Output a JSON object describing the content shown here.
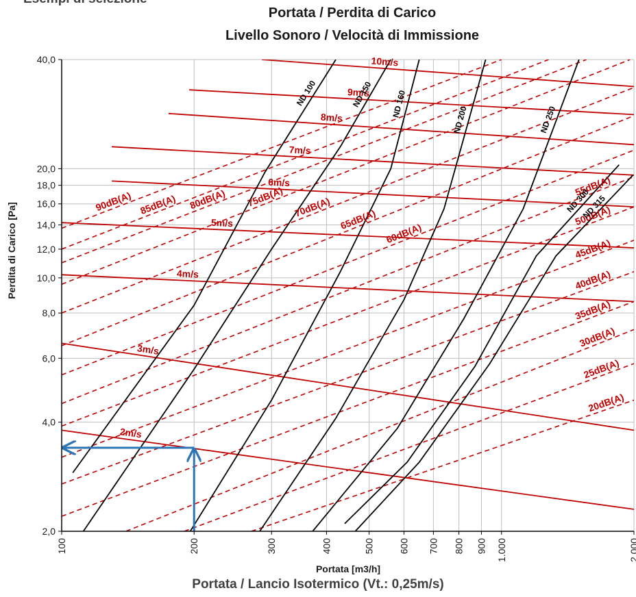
{
  "header_fragment": "Esempi di selezione",
  "bottom_caption": "Portata / Lancio Isotermico (Vt.: 0,25m/s)",
  "chart_data": {
    "type": "line",
    "title": [
      "Portata / Perdita di Carico",
      "Livello Sonoro / Velocità di Immissione"
    ],
    "xlabel": "Portata [m3/h]",
    "ylabel": "Perdita di Carico [Pa]",
    "xscale": "log",
    "yscale": "log",
    "xlim": [
      100,
      2000
    ],
    "ylim": [
      2,
      40
    ],
    "x_ticks": [
      {
        "value": 100,
        "label": "100"
      },
      {
        "value": 200,
        "label": "200"
      },
      {
        "value": 300,
        "label": "300"
      },
      {
        "value": 400,
        "label": "400"
      },
      {
        "value": 500,
        "label": "500"
      },
      {
        "value": 600,
        "label": "600"
      },
      {
        "value": 700,
        "label": "700"
      },
      {
        "value": 800,
        "label": "800"
      },
      {
        "value": 900,
        "label": "900"
      },
      {
        "value": 1000,
        "label": "1.000"
      },
      {
        "value": 2000,
        "label": "2.000"
      }
    ],
    "y_ticks": [
      {
        "value": 2,
        "label": "2,0"
      },
      {
        "value": 4,
        "label": "4,0"
      },
      {
        "value": 6,
        "label": "6,0"
      },
      {
        "value": 8,
        "label": "8,0"
      },
      {
        "value": 10,
        "label": "10,0"
      },
      {
        "value": 12,
        "label": "12,0"
      },
      {
        "value": 14,
        "label": "14,0"
      },
      {
        "value": 16,
        "label": "16,0"
      },
      {
        "value": 18,
        "label": "18,0"
      },
      {
        "value": 20,
        "label": "20,0"
      },
      {
        "value": 40,
        "label": "40,0"
      }
    ],
    "grid": true,
    "colors": {
      "diameter": "#000000",
      "velocity": "#c00000",
      "sound": "#c00000",
      "example": "#2e75b6",
      "grid": "#bfbfbf"
    },
    "diameter_series": [
      {
        "name": "ND 100",
        "points": [
          [
            106,
            2.9
          ],
          [
            200,
            8.4
          ],
          [
            290,
            19.6
          ],
          [
            420,
            40
          ]
        ]
      },
      {
        "name": "ND 150",
        "points": [
          [
            112,
            2
          ],
          [
            200,
            5.6
          ],
          [
            300,
            12
          ],
          [
            430,
            23
          ],
          [
            560,
            40
          ]
        ]
      },
      {
        "name": "ND 160",
        "points": [
          [
            196,
            2
          ],
          [
            300,
            4.6
          ],
          [
            430,
            10.4
          ],
          [
            560,
            20
          ],
          [
            650,
            40
          ]
        ]
      },
      {
        "name": "ND 200",
        "points": [
          [
            282,
            2
          ],
          [
            420,
            4.1
          ],
          [
            600,
            8.7
          ],
          [
            740,
            15.5
          ],
          [
            920,
            40
          ]
        ]
      },
      {
        "name": "ND 250",
        "points": [
          [
            372,
            2
          ],
          [
            580,
            3.85
          ],
          [
            820,
            7.7
          ],
          [
            1120,
            15.5
          ],
          [
            1500,
            40
          ]
        ]
      },
      {
        "name": "ND 300",
        "points": [
          [
            440,
            2.1
          ],
          [
            610,
            3.1
          ],
          [
            870,
            5.7
          ],
          [
            1200,
            11.5
          ],
          [
            1850,
            20.5
          ]
        ]
      },
      {
        "name": "ND 315",
        "points": [
          [
            465,
            2
          ],
          [
            650,
            3.1
          ],
          [
            940,
            5.8
          ],
          [
            1330,
            11.5
          ],
          [
            1990,
            19.2
          ]
        ]
      }
    ],
    "velocity_series": [
      {
        "name": "2m/s",
        "points": [
          [
            100,
            3.8
          ],
          [
            2000,
            2.3
          ]
        ]
      },
      {
        "name": "3m/s",
        "points": [
          [
            100,
            6.6
          ],
          [
            2000,
            3.8
          ]
        ]
      },
      {
        "name": "4m/s",
        "points": [
          [
            100,
            10.2
          ],
          [
            2000,
            8.6
          ]
        ]
      },
      {
        "name": "5m/s",
        "points": [
          [
            100,
            14.2
          ],
          [
            2000,
            12.1
          ]
        ]
      },
      {
        "name": "6m/s",
        "points": [
          [
            130,
            18.5
          ],
          [
            2000,
            15.7
          ]
        ]
      },
      {
        "name": "7m/s",
        "points": [
          [
            130,
            23
          ],
          [
            2000,
            19.2
          ]
        ]
      },
      {
        "name": "8m/s",
        "points": [
          [
            175,
            28.4
          ],
          [
            2000,
            23.3
          ]
        ]
      },
      {
        "name": "9m/s",
        "points": [
          [
            195,
            33
          ],
          [
            2000,
            28.2
          ]
        ]
      },
      {
        "name": "10m/s",
        "points": [
          [
            285,
            40
          ],
          [
            2000,
            33.7
          ]
        ]
      }
    ],
    "sound_series": [
      {
        "name": "90dB(A)",
        "points": [
          [
            100,
            13.7
          ],
          [
            1000,
            40
          ]
        ]
      },
      {
        "name": "85dB(A)",
        "points": [
          [
            100,
            12
          ],
          [
            1280,
            40
          ]
        ]
      },
      {
        "name": "80dB(A)",
        "points": [
          [
            100,
            11
          ],
          [
            1560,
            40
          ]
        ]
      },
      {
        "name": "75dB(A)",
        "points": [
          [
            100,
            9.6
          ],
          [
            1960,
            40
          ]
        ]
      },
      {
        "name": "70dB(A)",
        "points": [
          [
            100,
            8
          ],
          [
            2000,
            33.5
          ]
        ]
      },
      {
        "name": "65dB(A)",
        "points": [
          [
            100,
            6.5
          ],
          [
            2000,
            28
          ]
        ]
      },
      {
        "name": "60dB(A)",
        "points": [
          [
            100,
            5.4
          ],
          [
            2000,
            22.5
          ]
        ]
      },
      {
        "name": "55dB(A)",
        "points": [
          [
            100,
            4.5
          ],
          [
            2000,
            19
          ]
        ]
      },
      {
        "name": "50dB(A)",
        "points": [
          [
            100,
            3.9
          ],
          [
            2000,
            15.7
          ]
        ]
      },
      {
        "name": "45dB(A)",
        "points": [
          [
            100,
            3.2
          ],
          [
            2000,
            12.7
          ]
        ]
      },
      {
        "name": "40dB(A)",
        "points": [
          [
            100,
            2.7
          ],
          [
            2000,
            10.4
          ]
        ]
      },
      {
        "name": "35dB(A)",
        "points": [
          [
            100,
            2.2
          ],
          [
            2000,
            8.6
          ]
        ]
      },
      {
        "name": "30dB(A)",
        "points": [
          [
            140,
            2
          ],
          [
            2000,
            7.2
          ]
        ]
      },
      {
        "name": "25dB(A)",
        "points": [
          [
            190,
            2
          ],
          [
            2000,
            5.8
          ]
        ]
      },
      {
        "name": "20dB(A)",
        "points": [
          [
            270,
            2
          ],
          [
            2000,
            4.6
          ]
        ]
      }
    ],
    "example": {
      "flow": 200,
      "pressure_drop": 3.4
    }
  }
}
